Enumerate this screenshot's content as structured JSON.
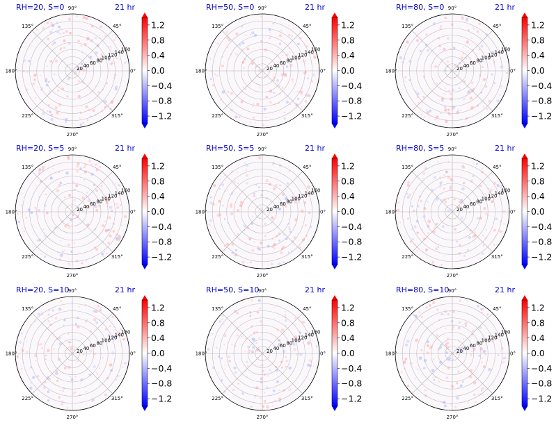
{
  "figure": {
    "colors": {
      "title": "#0000cc",
      "grid": "#b0b0b0",
      "pos_max": "#ff0000",
      "neutral": "#ffffff",
      "neg_max": "#0000ff"
    }
  },
  "chart_data": [
    {
      "type": "heatmap",
      "projection": "polar",
      "title": "RH=20, S=0",
      "time_label": "21 hr",
      "r_ticks": [
        "20",
        "40",
        "60",
        "80",
        "100",
        "120",
        "140",
        "160"
      ],
      "theta_ticks": [
        "0°",
        "45°",
        "90°",
        "135°",
        "180°",
        "225°",
        "270°",
        "315°"
      ],
      "colorbar_ticks": [
        "1.2",
        "0.8",
        "0.4",
        "0.0",
        "−0.4",
        "−0.8",
        "−1.2"
      ],
      "colorbar_range": [
        -1.4,
        1.4
      ],
      "colorbar_extend": "both",
      "cmap": "bwr",
      "grid": true
    },
    {
      "type": "heatmap",
      "projection": "polar",
      "title": "RH=50, S=0",
      "time_label": "21 hr",
      "r_ticks": [
        "20",
        "40",
        "60",
        "80",
        "100",
        "120",
        "140",
        "160"
      ],
      "theta_ticks": [
        "0°",
        "45°",
        "90°",
        "135°",
        "180°",
        "225°",
        "270°",
        "315°"
      ],
      "colorbar_ticks": [
        "1.2",
        "0.8",
        "0.4",
        "0.0",
        "−0.4",
        "−0.8",
        "−1.2"
      ],
      "colorbar_range": [
        -1.4,
        1.4
      ],
      "colorbar_extend": "both",
      "cmap": "bwr",
      "grid": true
    },
    {
      "type": "heatmap",
      "projection": "polar",
      "title": "RH=80, S=0",
      "time_label": "21 hr",
      "r_ticks": [
        "20",
        "40",
        "60",
        "80",
        "100",
        "120",
        "140",
        "160"
      ],
      "theta_ticks": [
        "0°",
        "45°",
        "90°",
        "135°",
        "180°",
        "225°",
        "270°",
        "315°"
      ],
      "colorbar_ticks": [
        "1.2",
        "0.8",
        "0.4",
        "0.0",
        "−0.4",
        "−0.8",
        "−1.2"
      ],
      "colorbar_range": [
        -1.4,
        1.4
      ],
      "colorbar_extend": "both",
      "cmap": "bwr",
      "grid": true
    },
    {
      "type": "heatmap",
      "projection": "polar",
      "title": "RH=20, S=5",
      "time_label": "21 hr",
      "r_ticks": [
        "20",
        "40",
        "60",
        "80",
        "100",
        "120",
        "140",
        "160"
      ],
      "theta_ticks": [
        "0°",
        "45°",
        "90°",
        "135°",
        "180°",
        "225°",
        "270°",
        "315°"
      ],
      "colorbar_ticks": [
        "1.2",
        "0.8",
        "0.4",
        "0.0",
        "−0.4",
        "−0.8",
        "−1.2"
      ],
      "colorbar_range": [
        -1.4,
        1.4
      ],
      "colorbar_extend": "both",
      "cmap": "bwr",
      "grid": true
    },
    {
      "type": "heatmap",
      "projection": "polar",
      "title": "RH=50, S=5",
      "time_label": "21 hr",
      "r_ticks": [
        "20",
        "40",
        "60",
        "80",
        "100",
        "120",
        "140",
        "160"
      ],
      "theta_ticks": [
        "0°",
        "45°",
        "90°",
        "135°",
        "180°",
        "225°",
        "270°",
        "315°"
      ],
      "colorbar_ticks": [
        "1.2",
        "0.8",
        "0.4",
        "0.0",
        "−0.4",
        "−0.8",
        "−1.2"
      ],
      "colorbar_range": [
        -1.4,
        1.4
      ],
      "colorbar_extend": "both",
      "cmap": "bwr",
      "grid": true
    },
    {
      "type": "heatmap",
      "projection": "polar",
      "title": "RH=80, S=5",
      "time_label": "21 hr",
      "r_ticks": [
        "20",
        "40",
        "60",
        "80",
        "100",
        "120",
        "140",
        "160"
      ],
      "theta_ticks": [
        "0°",
        "45°",
        "90°",
        "135°",
        "180°",
        "225°",
        "270°",
        "315°"
      ],
      "colorbar_ticks": [
        "1.2",
        "0.8",
        "0.4",
        "0.0",
        "−0.4",
        "−0.8",
        "−1.2"
      ],
      "colorbar_range": [
        -1.4,
        1.4
      ],
      "colorbar_extend": "both",
      "cmap": "bwr",
      "grid": true
    },
    {
      "type": "heatmap",
      "projection": "polar",
      "title": "RH=20, S=10",
      "time_label": "21 hr",
      "r_ticks": [
        "20",
        "40",
        "60",
        "80",
        "100",
        "120",
        "140",
        "160"
      ],
      "theta_ticks": [
        "0°",
        "45°",
        "90°",
        "135°",
        "180°",
        "225°",
        "270°",
        "315°"
      ],
      "colorbar_ticks": [
        "1.2",
        "0.8",
        "0.4",
        "0.0",
        "−0.4",
        "−0.8",
        "−1.2"
      ],
      "colorbar_range": [
        -1.4,
        1.4
      ],
      "colorbar_extend": "both",
      "cmap": "bwr",
      "grid": true
    },
    {
      "type": "heatmap",
      "projection": "polar",
      "title": "RH=50, S=10",
      "time_label": "21 hr",
      "r_ticks": [
        "20",
        "40",
        "60",
        "80",
        "100",
        "120",
        "140",
        "160"
      ],
      "theta_ticks": [
        "0°",
        "45°",
        "90°",
        "135°",
        "180°",
        "225°",
        "270°",
        "315°"
      ],
      "colorbar_ticks": [
        "1.2",
        "0.8",
        "0.4",
        "0.0",
        "−0.4",
        "−0.8",
        "−1.2"
      ],
      "colorbar_range": [
        -1.4,
        1.4
      ],
      "colorbar_extend": "both",
      "cmap": "bwr",
      "grid": true
    },
    {
      "type": "heatmap",
      "projection": "polar",
      "title": "RH=80, S=10",
      "time_label": "21 hr",
      "r_ticks": [
        "20",
        "40",
        "60",
        "80",
        "100",
        "120",
        "140",
        "160"
      ],
      "theta_ticks": [
        "0°",
        "45°",
        "90°",
        "135°",
        "180°",
        "225°",
        "270°",
        "315°"
      ],
      "colorbar_ticks": [
        "1.2",
        "0.8",
        "0.4",
        "0.0",
        "−0.4",
        "−0.8",
        "−1.2"
      ],
      "colorbar_range": [
        -1.4,
        1.4
      ],
      "colorbar_extend": "both",
      "cmap": "bwr",
      "grid": true
    }
  ]
}
